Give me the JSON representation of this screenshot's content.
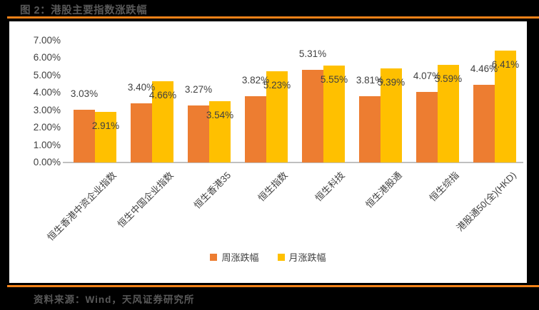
{
  "title": "图 2：港股主要指数涨跌幅",
  "footer": {
    "source": "资料来源：Wind，天风证券研究所"
  },
  "colors": {
    "page_bg": "#000000",
    "panel_bg": "#FFFFFF",
    "accent_rule": "#F28118",
    "week_bar": "#ED7D31",
    "month_bar": "#FFC000",
    "axis_line": "#BFBFBF",
    "label_text": "#404040",
    "banner_text": "#595959"
  },
  "chart_data": {
    "type": "bar",
    "title": "港股主要指数涨跌幅",
    "categories": [
      "恒生香港中资企业指数",
      "恒生中国企业指数",
      "恒生香港35",
      "恒生指数",
      "恒生科技",
      "恒生港股通",
      "恒生综指",
      "港股通50(全)(HKD)"
    ],
    "series": [
      {
        "name": "周涨跌幅",
        "values": [
          3.03,
          3.4,
          3.27,
          3.82,
          5.31,
          3.81,
          4.07,
          4.46
        ]
      },
      {
        "name": "月涨跌幅",
        "values": [
          2.91,
          4.66,
          3.54,
          5.23,
          5.55,
          5.39,
          5.59,
          6.41
        ]
      }
    ],
    "value_format": "percent_2dp",
    "ylim": [
      0,
      7
    ],
    "ytick_step": 1,
    "yticks": [
      "0.00%",
      "1.00%",
      "2.00%",
      "3.00%",
      "4.00%",
      "5.00%",
      "6.00%",
      "7.00%"
    ],
    "grid": false,
    "data_labels": true,
    "legend_position": "bottom"
  }
}
